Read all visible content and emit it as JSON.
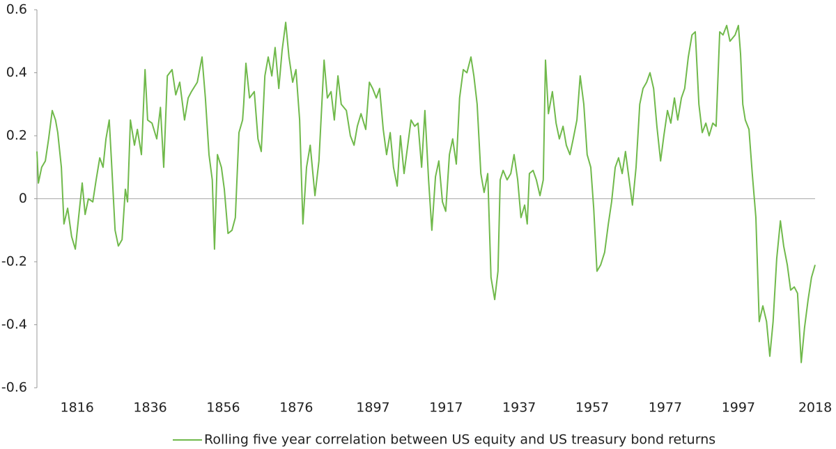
{
  "chart_data": {
    "type": "line",
    "x": [
      1805.0,
      1805.4,
      1806.3,
      1807.3,
      1808.2,
      1809.2,
      1810.1,
      1810.7,
      1811.7,
      1812.4,
      1813.4,
      1814.5,
      1815.5,
      1816.4,
      1817.4,
      1818.2,
      1819.1,
      1820.3,
      1821.2,
      1822.2,
      1823.1,
      1823.9,
      1824.8,
      1825.4,
      1826.4,
      1827.3,
      1828.3,
      1829.2,
      1829.8,
      1830.6,
      1831.7,
      1832.5,
      1833.6,
      1834.6,
      1835.3,
      1836.5,
      1837.8,
      1838.8,
      1839.7,
      1840.7,
      1842.0,
      1843.0,
      1844.1,
      1845.4,
      1846.4,
      1847.3,
      1848.9,
      1850.2,
      1851.1,
      1852.1,
      1853.0,
      1853.6,
      1854.4,
      1855.5,
      1856.3,
      1857.3,
      1858.4,
      1859.3,
      1860.3,
      1861.3,
      1861.6,
      1862.2,
      1863.2,
      1864.5,
      1865.5,
      1866.4,
      1867.4,
      1868.3,
      1869.3,
      1870.2,
      1871.2,
      1872.1,
      1873.1,
      1874.0,
      1875.0,
      1875.9,
      1876.9,
      1877.8,
      1878.8,
      1879.8,
      1881.1,
      1882.2,
      1883.6,
      1884.5,
      1885.5,
      1886.4,
      1887.4,
      1888.3,
      1889.7,
      1890.8,
      1891.8,
      1892.7,
      1893.7,
      1895.0,
      1896.0,
      1896.9,
      1897.9,
      1898.8,
      1899.8,
      1900.7,
      1901.7,
      1902.6,
      1903.6,
      1904.5,
      1905.5,
      1906.5,
      1907.4,
      1908.4,
      1909.3,
      1910.3,
      1911.2,
      1912.2,
      1913.1,
      1914.1,
      1915.0,
      1916.0,
      1916.9,
      1917.9,
      1918.8,
      1919.8,
      1920.7,
      1921.7,
      1922.7,
      1923.8,
      1924.6,
      1925.5,
      1926.5,
      1927.4,
      1928.4,
      1929.3,
      1930.3,
      1931.2,
      1931.8,
      1932.6,
      1933.7,
      1934.7,
      1935.6,
      1936.6,
      1937.5,
      1938.5,
      1939.2,
      1939.8,
      1940.8,
      1941.7,
      1942.7,
      1943.6,
      1944.2,
      1945.0,
      1946.1,
      1947.1,
      1948.0,
      1949.0,
      1949.9,
      1950.9,
      1951.8,
      1952.8,
      1953.7,
      1954.7,
      1955.6,
      1956.6,
      1957.4,
      1958.3,
      1959.3,
      1960.4,
      1961.4,
      1962.3,
      1963.3,
      1964.2,
      1965.2,
      1966.1,
      1967.1,
      1968.0,
      1969.0,
      1970.0,
      1970.9,
      1971.9,
      1972.8,
      1973.8,
      1974.7,
      1975.7,
      1976.6,
      1977.6,
      1978.5,
      1979.5,
      1980.4,
      1981.4,
      1982.3,
      1983.3,
      1984.3,
      1985.2,
      1986.2,
      1987.1,
      1988.1,
      1989.0,
      1990.0,
      1990.9,
      1991.9,
      1992.8,
      1993.8,
      1994.7,
      1996.1,
      1997.0,
      1997.6,
      1998.2,
      1998.9,
      1999.9,
      2000.8,
      2001.8,
      2002.7,
      2003.7,
      2004.7,
      2005.6,
      2006.5,
      2007.5,
      2008.5,
      2009.4,
      2010.4,
      2011.3,
      2012.3,
      2013.2,
      2014.2,
      2015.1,
      2016.1,
      2017.0,
      2018.0
    ],
    "series": [
      {
        "name": "Rolling five year correlation between US equity and US treasury bond returns",
        "color": "#70b94b",
        "values": [
          0.15,
          0.05,
          0.1,
          0.12,
          0.19,
          0.28,
          0.25,
          0.21,
          0.1,
          -0.08,
          -0.03,
          -0.12,
          -0.16,
          -0.06,
          0.05,
          -0.05,
          0.0,
          -0.01,
          0.06,
          0.13,
          0.1,
          0.19,
          0.25,
          0.12,
          -0.1,
          -0.15,
          -0.13,
          0.03,
          -0.01,
          0.25,
          0.17,
          0.22,
          0.14,
          0.41,
          0.25,
          0.24,
          0.19,
          0.29,
          0.1,
          0.39,
          0.41,
          0.33,
          0.37,
          0.25,
          0.32,
          0.34,
          0.37,
          0.45,
          0.32,
          0.14,
          0.06,
          -0.16,
          0.14,
          0.1,
          0.03,
          -0.11,
          -0.1,
          -0.06,
          0.21,
          0.25,
          0.3,
          0.43,
          0.32,
          0.34,
          0.19,
          0.15,
          0.39,
          0.45,
          0.39,
          0.48,
          0.35,
          0.47,
          0.56,
          0.45,
          0.37,
          0.41,
          0.25,
          -0.08,
          0.1,
          0.17,
          0.01,
          0.12,
          0.44,
          0.32,
          0.34,
          0.25,
          0.39,
          0.3,
          0.28,
          0.2,
          0.17,
          0.23,
          0.27,
          0.22,
          0.37,
          0.35,
          0.32,
          0.35,
          0.22,
          0.14,
          0.21,
          0.1,
          0.04,
          0.2,
          0.08,
          0.17,
          0.25,
          0.23,
          0.24,
          0.1,
          0.28,
          0.06,
          -0.1,
          0.07,
          0.12,
          -0.01,
          -0.04,
          0.14,
          0.19,
          0.11,
          0.32,
          0.41,
          0.4,
          0.45,
          0.39,
          0.3,
          0.08,
          0.02,
          0.08,
          -0.25,
          -0.32,
          -0.23,
          0.06,
          0.09,
          0.06,
          0.08,
          0.14,
          0.06,
          -0.06,
          -0.02,
          -0.08,
          0.08,
          0.09,
          0.06,
          0.01,
          0.06,
          0.44,
          0.27,
          0.34,
          0.24,
          0.19,
          0.23,
          0.17,
          0.14,
          0.19,
          0.25,
          0.39,
          0.3,
          0.14,
          0.1,
          -0.03,
          -0.23,
          -0.21,
          -0.17,
          -0.08,
          -0.01,
          0.1,
          0.13,
          0.08,
          0.15,
          0.06,
          -0.02,
          0.1,
          0.3,
          0.35,
          0.37,
          0.4,
          0.35,
          0.23,
          0.12,
          0.2,
          0.28,
          0.24,
          0.32,
          0.25,
          0.32,
          0.35,
          0.45,
          0.52,
          0.53,
          0.3,
          0.21,
          0.24,
          0.2,
          0.24,
          0.23,
          0.53,
          0.52,
          0.55,
          0.5,
          0.52,
          0.55,
          0.46,
          0.3,
          0.25,
          0.22,
          0.08,
          -0.06,
          -0.39,
          -0.34,
          -0.39,
          -0.5,
          -0.39,
          -0.19,
          -0.07,
          -0.15,
          -0.21,
          -0.29,
          -0.28,
          -0.3,
          -0.52,
          -0.41,
          -0.32,
          -0.25,
          -0.21
        ]
      }
    ],
    "xlim": [
      1805,
      2018
    ],
    "xticks": [
      1816,
      1836,
      1856,
      1876,
      1897,
      1917,
      1937,
      1957,
      1977,
      1997,
      2018
    ],
    "ylim": [
      -0.6,
      0.6
    ],
    "yticks": [
      0.6,
      0.4,
      0.2,
      0,
      -0.2,
      -0.4,
      -0.6
    ],
    "legend": "bottom"
  }
}
